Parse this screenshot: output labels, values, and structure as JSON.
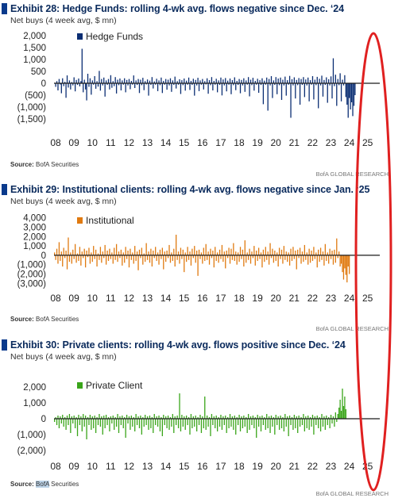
{
  "exhibits": [
    {
      "title": "Exhibit 28: Hedge Funds: rolling 4-wk avg. flows negative since Dec. ‘24",
      "subtitle": "Net buys (4 week avg, $ mn)",
      "source_label": "Source:",
      "source_text": "BofA Securities",
      "brand": "BofA GLOBAL RESEARCH"
    },
    {
      "title": "Exhibit 29: Institutional clients: rolling 4-wk avg. flows negative since Jan. ‘25",
      "subtitle": "Net buys (4 week avg, $ mn)",
      "source_label": "Source:",
      "source_text": "BofA Securities",
      "brand": "BofA GLOBAL RESEARCH"
    },
    {
      "title": "Exhibit 30: Private clients: rolling 4-wk avg. flows positive since Dec. ‘24",
      "subtitle": "Net buys (4 week avg, $ mn)",
      "source_label": "Source:",
      "source_text_highlight": "BofA",
      "source_text_rest": " Securities",
      "brand": "BofA GLOBAL RESEARCH"
    }
  ],
  "colors": {
    "hedge": "#0b2e73",
    "institutional": "#e07a10",
    "private": "#3aa51a",
    "annotation": "#e02020",
    "title": "#0a2a5c"
  },
  "chart_data": [
    {
      "type": "bar",
      "title": "Exhibit 28: Hedge Funds: rolling 4-wk avg. flows negative since Dec. ‘24",
      "series": [
        {
          "name": "Hedge Funds",
          "x_start": 2008.0,
          "x_step": 0.0625,
          "values": [
            20,
            -150,
            90,
            -300,
            180,
            -50,
            -420,
            210,
            -120,
            60,
            -610,
            330,
            -180,
            120,
            -260,
            50,
            -90,
            250,
            -340,
            140,
            -70,
            200,
            -130,
            90,
            1450,
            -380,
            150,
            -260,
            -720,
            400,
            -150,
            210,
            -480,
            120,
            -60,
            300,
            -230,
            90,
            -140,
            520,
            -310,
            180,
            -90,
            240,
            -560,
            120,
            -70,
            180,
            -260,
            340,
            -190,
            90,
            -120,
            260,
            -430,
            150,
            -80,
            200,
            -300,
            120,
            -60,
            210,
            -380,
            140,
            -90,
            180,
            -250,
            100,
            -60,
            330,
            -200,
            120,
            -70,
            180,
            -410,
            150,
            -80,
            230,
            -290,
            90,
            -50,
            160,
            -520,
            110,
            -70,
            260,
            -220,
            80,
            -60,
            190,
            -330,
            120,
            -80,
            240,
            -410,
            100,
            -60,
            180,
            -270,
            150,
            -90,
            210,
            -360,
            120,
            -70,
            280,
            -220,
            90,
            -60,
            170,
            -450,
            130,
            -80,
            200,
            -310,
            110,
            -60,
            240,
            -280,
            100,
            -70,
            190,
            -520,
            140,
            -90,
            230,
            -330,
            120,
            -60,
            180,
            -260,
            90,
            -50,
            210,
            -440,
            130,
            -80,
            260,
            -300,
            100,
            -60,
            190,
            -380,
            120,
            -70,
            240,
            -510,
            160,
            -90,
            220,
            -340,
            110,
            -60,
            200,
            -460,
            130,
            -80,
            250,
            -290,
            100,
            -70,
            180,
            -420,
            140,
            -90,
            210,
            -360,
            120,
            -60,
            260,
            -550,
            150,
            -80,
            230,
            -310,
            100,
            -60,
            190,
            -400,
            130,
            -70,
            210,
            -880,
            110,
            -60,
            240,
            -1150,
            180,
            -90,
            300,
            -620,
            120,
            -70,
            260,
            -460,
            200,
            -80,
            240,
            -700,
            150,
            -90,
            280,
            -520,
            130,
            -60,
            310,
            -1450,
            170,
            -90,
            250,
            -640,
            140,
            -80,
            220,
            -900,
            180,
            -70,
            260,
            -580,
            160,
            -90,
            240,
            -760,
            130,
            -60,
            300,
            -680,
            150,
            -80,
            270,
            -1050,
            190,
            -90,
            320,
            -560,
            140,
            -70,
            250,
            -820,
            170,
            -90,
            290,
            -640,
            1050,
            -120,
            360,
            -950,
            180,
            -80,
            420,
            -760,
            150,
            -90,
            340,
            -580,
            -900,
            -1450,
            -620,
            -1100,
            -800,
            -1380,
            -950,
            -500
          ]
        }
      ],
      "ylim": [
        -1700,
        2100
      ],
      "yticks": [
        2000,
        1500,
        1000,
        500,
        0,
        -500,
        -1000,
        -1500
      ],
      "ytick_labels": [
        "2,000",
        "1,500",
        "1,000",
        "500",
        "0",
        "(500)",
        "(1,000)",
        "(1,500)"
      ],
      "xtick_labels": [
        "08",
        "09",
        "10",
        "11",
        "12",
        "13",
        "14",
        "15",
        "16",
        "17",
        "18",
        "19",
        "20",
        "21",
        "22",
        "23",
        "24",
        "25"
      ],
      "legend": "top-left"
    },
    {
      "type": "bar",
      "title": "Exhibit 29: Institutional clients: rolling 4-wk avg. flows negative since Jan. ‘25",
      "series": [
        {
          "name": "Institutional",
          "x_start": 2008.0,
          "x_step": 0.0625,
          "values": [
            300,
            -500,
            700,
            -900,
            1400,
            -600,
            400,
            -1200,
            800,
            -300,
            500,
            -1500,
            1900,
            -700,
            300,
            -900,
            600,
            -400,
            1200,
            -800,
            200,
            -600,
            900,
            -1100,
            400,
            -300,
            700,
            -1300,
            500,
            -200,
            800,
            -900,
            300,
            -700,
            1000,
            -400,
            600,
            -1200,
            200,
            -500,
            900,
            -800,
            400,
            -300,
            1100,
            -1000,
            500,
            -600,
            700,
            -400,
            300,
            -900,
            800,
            -500,
            1200,
            -700,
            400,
            -300,
            600,
            -1100,
            300,
            -800,
            900,
            -400,
            500,
            -1300,
            700,
            -500,
            300,
            -900,
            1000,
            -600,
            400,
            -1600,
            600,
            -300,
            800,
            -1000,
            200,
            -700,
            1300,
            -500,
            400,
            -800,
            700,
            -1200,
            500,
            -300,
            900,
            -600,
            300,
            -1000,
            600,
            -400,
            800,
            -1500,
            400,
            -700,
            500,
            -300,
            1100,
            -800,
            300,
            -600,
            700,
            -1200,
            2200,
            -500,
            400,
            -900,
            800,
            -400,
            600,
            -1800,
            300,
            -700,
            900,
            -500,
            400,
            -1100,
            700,
            -300,
            1000,
            -800,
            500,
            -2200,
            600,
            -400,
            300,
            -900,
            800,
            -600,
            1200,
            -500,
            400,
            -1000,
            700,
            -300,
            500,
            -1300,
            900,
            -600,
            300,
            -800,
            600,
            -400,
            1100,
            -700,
            400,
            -1400,
            500,
            -300,
            800,
            -900,
            700,
            -500,
            1300,
            -600,
            400,
            -1000,
            300,
            -700,
            900,
            -400,
            600,
            -1200,
            1600,
            -800,
            300,
            -500,
            700,
            -900,
            400,
            -300,
            1000,
            -1100,
            500,
            -600,
            800,
            -400,
            300,
            -1300,
            600,
            -700,
            900,
            -500,
            400,
            -1000,
            1300,
            -300,
            700,
            -800,
            500,
            -600,
            300,
            -1200,
            800,
            -400,
            600,
            -900,
            1000,
            -500,
            400,
            -700,
            300,
            -1100,
            700,
            -600,
            900,
            -400,
            500,
            -1500,
            600,
            -300,
            800,
            -900,
            400,
            -700,
            1100,
            -500,
            300,
            -1000,
            700,
            -800,
            500,
            -600,
            900,
            -400,
            300,
            -1300,
            600,
            -700,
            800,
            -500,
            400,
            -1100,
            1200,
            -600,
            300,
            -900,
            700,
            -400,
            500,
            -1000,
            600,
            -800,
            1800,
            -300,
            400,
            -1200,
            -900,
            -1800,
            -2600,
            -1400,
            -2100,
            -2900,
            -1200,
            -2000
          ]
        }
      ],
      "ylim": [
        -3400,
        4400
      ],
      "yticks": [
        4000,
        3000,
        2000,
        1000,
        0,
        -1000,
        -2000,
        -3000
      ],
      "ytick_labels": [
        "4,000",
        "3,000",
        "2,000",
        "1,000",
        "0",
        "(1,000)",
        "(2,000)",
        "(3,000)"
      ],
      "xtick_labels": [
        "08",
        "09",
        "10",
        "11",
        "12",
        "13",
        "14",
        "15",
        "16",
        "17",
        "18",
        "19",
        "20",
        "21",
        "22",
        "23",
        "24",
        "25"
      ],
      "legend": "top-left"
    },
    {
      "type": "bar",
      "title": "Exhibit 30: Private clients: rolling 4-wk avg. flows positive since Dec. ‘24",
      "series": [
        {
          "name": "Private Client",
          "x_start": 2008.0,
          "x_step": 0.0625,
          "values": [
            -200,
            100,
            -400,
            200,
            -600,
            150,
            -300,
            250,
            -500,
            100,
            -700,
            200,
            -400,
            300,
            -900,
            150,
            -300,
            200,
            -600,
            100,
            -1100,
            250,
            -400,
            150,
            -800,
            300,
            -500,
            200,
            -1300,
            100,
            -400,
            250,
            -700,
            150,
            -600,
            200,
            -900,
            100,
            -400,
            300,
            -500,
            150,
            -1000,
            200,
            -600,
            250,
            -400,
            100,
            -800,
            150,
            -300,
            200,
            -700,
            100,
            -500,
            300,
            -900,
            150,
            -400,
            200,
            -600,
            100,
            -1200,
            250,
            -300,
            150,
            -700,
            200,
            -500,
            100,
            -800,
            300,
            -400,
            150,
            -600,
            200,
            -1000,
            100,
            -500,
            250,
            -400,
            150,
            -700,
            200,
            -600,
            100,
            -900,
            300,
            -400,
            150,
            -500,
            200,
            -800,
            100,
            -1100,
            250,
            -400,
            150,
            -600,
            200,
            -700,
            100,
            -500,
            300,
            -900,
            150,
            -400,
            200,
            -600,
            1600,
            -800,
            250,
            -500,
            150,
            -700,
            200,
            -400,
            100,
            -1000,
            300,
            -600,
            150,
            -500,
            200,
            -800,
            100,
            -400,
            250,
            -900,
            150,
            -600,
            1400,
            -700,
            200,
            -500,
            100,
            -1100,
            300,
            -400,
            150,
            -600,
            200,
            -800,
            100,
            -500,
            250,
            -700,
            150,
            -400,
            200,
            -900,
            100,
            -600,
            300,
            -500,
            150,
            -700,
            200,
            -1000,
            100,
            -400,
            250,
            -800,
            150,
            -600,
            200,
            -500,
            100,
            -900,
            300,
            -700,
            150,
            -400,
            200,
            -600,
            100,
            -1200,
            250,
            -500,
            150,
            -800,
            200,
            -400,
            100,
            -700,
            300,
            -600,
            150,
            -900,
            200,
            -500,
            100,
            -1000,
            250,
            -400,
            150,
            -700,
            200,
            -600,
            100,
            -800,
            300,
            -500,
            150,
            -1100,
            200,
            -400,
            100,
            -700,
            250,
            -600,
            150,
            -900,
            200,
            -500,
            100,
            -400,
            300,
            -800,
            150,
            -600,
            200,
            -700,
            100,
            -500,
            250,
            -1000,
            150,
            -400,
            200,
            -600,
            100,
            -800,
            300,
            -500,
            150,
            -700,
            200,
            -400,
            100,
            -600,
            250,
            -300,
            150,
            -500,
            400,
            -200,
            300,
            700,
            1200,
            500,
            1900,
            800,
            1400,
            600
          ]
        }
      ],
      "ylim": [
        -2300,
        2700
      ],
      "yticks": [
        2000,
        1000,
        0,
        -1000,
        -2000
      ],
      "ytick_labels": [
        "2,000",
        "1,000",
        "0",
        "(1,000)",
        "(2,000)"
      ],
      "xtick_labels": [
        "08",
        "09",
        "10",
        "11",
        "12",
        "13",
        "14",
        "15",
        "16",
        "17",
        "18",
        "19",
        "20",
        "21",
        "22",
        "23",
        "24",
        "25"
      ],
      "legend": "top-left"
    }
  ]
}
